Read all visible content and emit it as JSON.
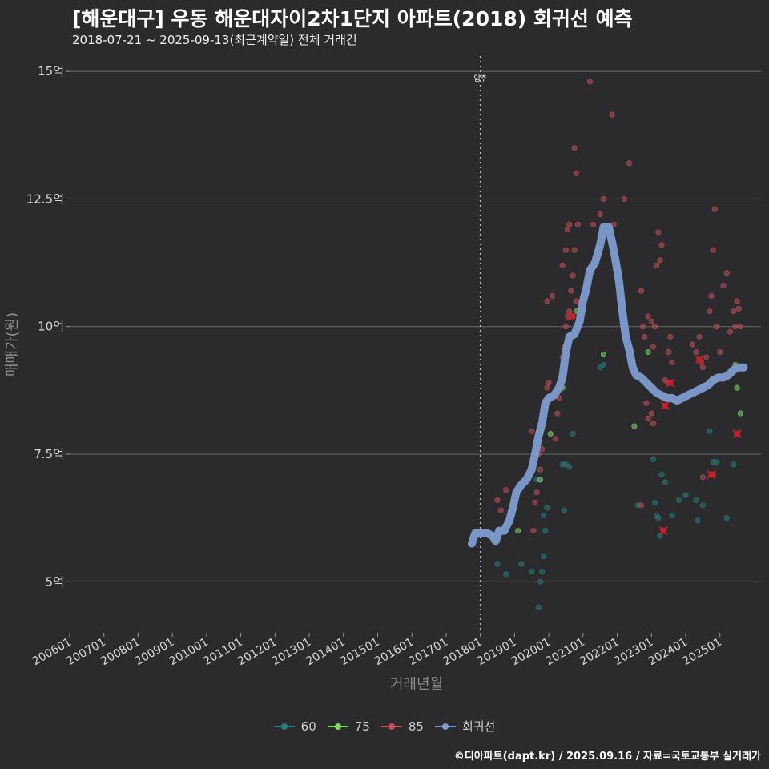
{
  "title": "[해운대구] 우동 해운대자이2차1단지 아파트(2018) 회귀선 예측",
  "subtitle": "2018-07-21 ~ 2025-09-13(최근계약일) 전체 거래건",
  "credit": "©디아파트(dapt.kr) / 2025.09.16 / 자료=국토교통부 실거래가",
  "colors": {
    "background": "#2b2b2d",
    "s60": "#2a7d78",
    "s75": "#7fd66b",
    "s85": "#c0505a",
    "regression": "#7e9ccf",
    "grid": "#6a6a6a"
  },
  "chart_data": {
    "type": "scatter",
    "xlabel": "거래년월",
    "ylabel": "매매가(원)",
    "ylim": [
      4,
      15.3
    ],
    "y_ticks": [
      {
        "value": 5,
        "label": "5억"
      },
      {
        "value": 7.5,
        "label": "7.5억"
      },
      {
        "value": 10,
        "label": "10억"
      },
      {
        "value": 12.5,
        "label": "12.5억"
      },
      {
        "value": 15,
        "label": "15억"
      }
    ],
    "x_ticks": [
      "200601",
      "200701",
      "200801",
      "200901",
      "201001",
      "201101",
      "201201",
      "201301",
      "201401",
      "201501",
      "201601",
      "201701",
      "201801",
      "201901",
      "202001",
      "202101",
      "202201",
      "202301",
      "202401",
      "202501"
    ],
    "xlim": [
      2006.0,
      2026.2
    ],
    "annotation": {
      "label": "입주",
      "x": 2018.0
    },
    "legend_position": "bottom",
    "series": [
      {
        "name": "60",
        "points": [
          [
            2018.5,
            5.35
          ],
          [
            2018.75,
            5.15
          ],
          [
            2019.2,
            5.35
          ],
          [
            2019.5,
            5.2
          ],
          [
            2019.7,
            4.5
          ],
          [
            2019.75,
            5.0
          ],
          [
            2019.8,
            5.2
          ],
          [
            2019.85,
            5.5
          ],
          [
            2019.9,
            6.0
          ],
          [
            2019.95,
            6.45
          ],
          [
            2019.65,
            7.0
          ],
          [
            2019.85,
            6.3
          ],
          [
            2020.4,
            7.3
          ],
          [
            2020.45,
            6.4
          ],
          [
            2020.5,
            7.3
          ],
          [
            2020.6,
            7.25
          ],
          [
            2020.7,
            7.9
          ],
          [
            2021.5,
            9.2
          ],
          [
            2021.6,
            9.25
          ],
          [
            2022.6,
            6.5
          ],
          [
            2023.05,
            7.4
          ],
          [
            2023.1,
            6.55
          ],
          [
            2023.15,
            6.3
          ],
          [
            2023.2,
            6.25
          ],
          [
            2023.25,
            5.9
          ],
          [
            2023.3,
            7.1
          ],
          [
            2023.4,
            6.95
          ],
          [
            2023.6,
            6.3
          ],
          [
            2023.8,
            6.6
          ],
          [
            2024.0,
            6.7
          ],
          [
            2024.3,
            6.6
          ],
          [
            2024.35,
            6.2
          ],
          [
            2024.5,
            6.5
          ],
          [
            2024.7,
            7.95
          ],
          [
            2024.8,
            7.35
          ],
          [
            2024.9,
            7.35
          ],
          [
            2025.2,
            6.25
          ],
          [
            2025.4,
            7.3
          ]
        ]
      },
      {
        "name": "75",
        "points": [
          [
            2019.1,
            6.0
          ],
          [
            2019.75,
            7.0
          ],
          [
            2020.05,
            7.9
          ],
          [
            2020.4,
            8.8
          ],
          [
            2020.8,
            10.3
          ],
          [
            2021.6,
            9.45
          ],
          [
            2022.5,
            8.05
          ],
          [
            2022.9,
            9.5
          ],
          [
            2025.5,
            8.8
          ],
          [
            2025.6,
            8.3
          ],
          [
            2025.45,
            9.25
          ]
        ]
      },
      {
        "name": "85",
        "points": [
          [
            2018.5,
            6.6
          ],
          [
            2018.6,
            6.4
          ],
          [
            2018.75,
            6.8
          ],
          [
            2019.5,
            7.95
          ],
          [
            2019.55,
            6.0
          ],
          [
            2019.6,
            6.55
          ],
          [
            2019.65,
            6.75
          ],
          [
            2019.7,
            7.5
          ],
          [
            2019.75,
            7.2
          ],
          [
            2019.8,
            7.6
          ],
          [
            2019.85,
            8.3
          ],
          [
            2019.95,
            8.8
          ],
          [
            2020.0,
            8.9
          ],
          [
            2019.95,
            10.5
          ],
          [
            2020.1,
            10.6
          ],
          [
            2020.2,
            7.8
          ],
          [
            2020.25,
            8.3
          ],
          [
            2020.3,
            8.6
          ],
          [
            2020.35,
            9.0
          ],
          [
            2020.4,
            9.4
          ],
          [
            2020.45,
            9.6
          ],
          [
            2020.5,
            10.0
          ],
          [
            2020.55,
            10.2
          ],
          [
            2020.6,
            10.3
          ],
          [
            2020.65,
            10.7
          ],
          [
            2020.4,
            11.2
          ],
          [
            2020.5,
            11.5
          ],
          [
            2020.55,
            11.9
          ],
          [
            2020.6,
            12.0
          ],
          [
            2020.7,
            11.0
          ],
          [
            2020.75,
            11.5
          ],
          [
            2020.8,
            10.5
          ],
          [
            2020.75,
            13.5
          ],
          [
            2020.8,
            13.0
          ],
          [
            2020.85,
            12.0
          ],
          [
            2020.7,
            10.2
          ],
          [
            2021.2,
            14.8
          ],
          [
            2021.3,
            12.0
          ],
          [
            2021.5,
            12.2
          ],
          [
            2021.6,
            12.5
          ],
          [
            2021.85,
            14.15
          ],
          [
            2021.9,
            12.0
          ],
          [
            2022.2,
            12.5
          ],
          [
            2022.35,
            13.2
          ],
          [
            2022.7,
            10.7
          ],
          [
            2022.75,
            10.0
          ],
          [
            2022.8,
            9.8
          ],
          [
            2022.9,
            10.2
          ],
          [
            2023.0,
            10.1
          ],
          [
            2023.05,
            9.6
          ],
          [
            2023.1,
            10.0
          ],
          [
            2023.15,
            11.2
          ],
          [
            2023.2,
            11.85
          ],
          [
            2023.25,
            11.3
          ],
          [
            2023.3,
            11.6
          ],
          [
            2023.4,
            8.95
          ],
          [
            2023.5,
            9.5
          ],
          [
            2023.55,
            9.8
          ],
          [
            2022.85,
            8.5
          ],
          [
            2022.9,
            8.2
          ],
          [
            2023.0,
            8.3
          ],
          [
            2023.05,
            8.1
          ],
          [
            2022.7,
            6.5
          ],
          [
            2023.35,
            6.0
          ],
          [
            2023.5,
            8.9
          ],
          [
            2023.6,
            9.3
          ],
          [
            2024.2,
            9.65
          ],
          [
            2024.3,
            9.5
          ],
          [
            2024.4,
            9.8
          ],
          [
            2024.5,
            9.2
          ],
          [
            2024.6,
            9.4
          ],
          [
            2024.7,
            10.3
          ],
          [
            2024.75,
            10.6
          ],
          [
            2024.8,
            11.5
          ],
          [
            2024.85,
            12.3
          ],
          [
            2024.9,
            10.0
          ],
          [
            2025.0,
            9.5
          ],
          [
            2025.1,
            10.8
          ],
          [
            2025.2,
            11.05
          ],
          [
            2025.3,
            9.9
          ],
          [
            2025.4,
            10.3
          ],
          [
            2025.45,
            10.0
          ],
          [
            2025.5,
            10.5
          ],
          [
            2025.55,
            10.35
          ],
          [
            2025.6,
            10.0
          ],
          [
            2024.8,
            7.1
          ],
          [
            2025.5,
            7.9
          ],
          [
            2024.45,
            9.3
          ],
          [
            2024.5,
            7.05
          ]
        ]
      },
      {
        "name": "회귀선",
        "points": [
          [
            2017.75,
            5.75
          ],
          [
            2017.85,
            5.95
          ],
          [
            2018.0,
            5.95
          ],
          [
            2018.2,
            5.95
          ],
          [
            2018.35,
            5.9
          ],
          [
            2018.45,
            5.8
          ],
          [
            2018.55,
            6.0
          ],
          [
            2018.7,
            6.0
          ],
          [
            2018.85,
            6.2
          ],
          [
            2018.95,
            6.45
          ],
          [
            2019.05,
            6.75
          ],
          [
            2019.2,
            6.9
          ],
          [
            2019.35,
            7.0
          ],
          [
            2019.5,
            7.2
          ],
          [
            2019.6,
            7.5
          ],
          [
            2019.7,
            7.85
          ],
          [
            2019.8,
            8.1
          ],
          [
            2019.9,
            8.5
          ],
          [
            2020.0,
            8.6
          ],
          [
            2020.15,
            8.65
          ],
          [
            2020.3,
            8.8
          ],
          [
            2020.4,
            9.0
          ],
          [
            2020.5,
            9.5
          ],
          [
            2020.6,
            9.8
          ],
          [
            2020.75,
            9.85
          ],
          [
            2020.9,
            10.1
          ],
          [
            2021.0,
            10.5
          ],
          [
            2021.1,
            10.75
          ],
          [
            2021.2,
            11.1
          ],
          [
            2021.35,
            11.25
          ],
          [
            2021.5,
            11.6
          ],
          [
            2021.6,
            11.95
          ],
          [
            2021.75,
            11.95
          ],
          [
            2021.85,
            11.65
          ],
          [
            2021.95,
            11.3
          ],
          [
            2022.05,
            10.9
          ],
          [
            2022.15,
            10.3
          ],
          [
            2022.25,
            9.8
          ],
          [
            2022.35,
            9.55
          ],
          [
            2022.45,
            9.2
          ],
          [
            2022.55,
            9.05
          ],
          [
            2022.7,
            9.0
          ],
          [
            2022.85,
            8.9
          ],
          [
            2023.0,
            8.8
          ],
          [
            2023.15,
            8.7
          ],
          [
            2023.3,
            8.65
          ],
          [
            2023.45,
            8.6
          ],
          [
            2023.6,
            8.6
          ],
          [
            2023.75,
            8.55
          ],
          [
            2023.9,
            8.6
          ],
          [
            2024.05,
            8.65
          ],
          [
            2024.2,
            8.7
          ],
          [
            2024.35,
            8.75
          ],
          [
            2024.5,
            8.8
          ],
          [
            2024.65,
            8.85
          ],
          [
            2024.8,
            8.95
          ],
          [
            2024.95,
            9.0
          ],
          [
            2025.1,
            9.0
          ],
          [
            2025.25,
            9.05
          ],
          [
            2025.4,
            9.15
          ],
          [
            2025.55,
            9.2
          ],
          [
            2025.7,
            9.2
          ]
        ]
      }
    ],
    "highlights": [
      {
        "series": "85",
        "x": 2020.65,
        "y": 10.2,
        "marker": "x"
      },
      {
        "series": "85",
        "x": 2023.4,
        "y": 8.45,
        "marker": "x"
      },
      {
        "series": "85",
        "x": 2023.35,
        "y": 6.0,
        "marker": "x"
      },
      {
        "series": "85",
        "x": 2023.55,
        "y": 8.9,
        "marker": "x"
      },
      {
        "series": "85",
        "x": 2024.4,
        "y": 9.35,
        "marker": "x"
      },
      {
        "series": "85",
        "x": 2024.75,
        "y": 7.1,
        "marker": "x"
      },
      {
        "series": "85",
        "x": 2025.5,
        "y": 7.9,
        "marker": "x"
      }
    ],
    "legend": [
      {
        "name": "60",
        "color": "#2a7d78"
      },
      {
        "name": "75",
        "color": "#7fd66b"
      },
      {
        "name": "85",
        "color": "#c0505a"
      },
      {
        "name": "회귀선",
        "color": "#7e9ccf"
      }
    ]
  }
}
